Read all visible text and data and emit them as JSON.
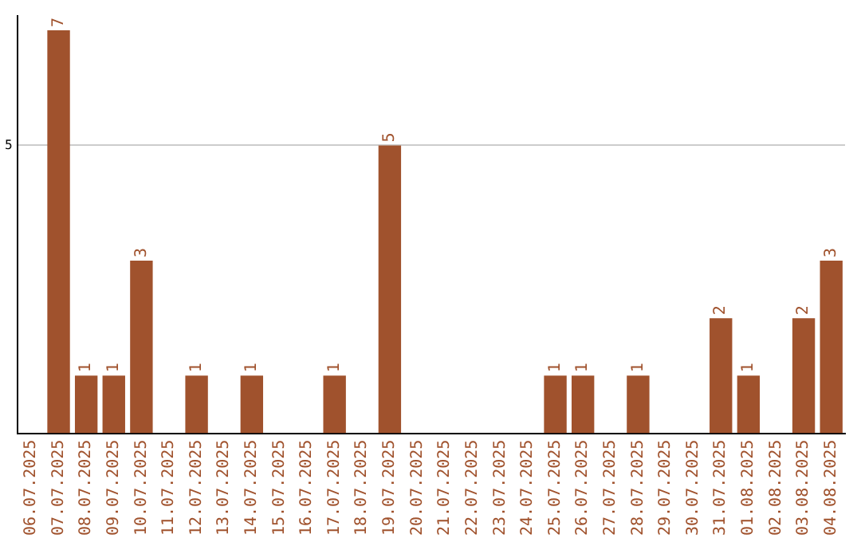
{
  "chart_data": {
    "type": "bar",
    "categories": [
      "06.07.2025",
      "07.07.2025",
      "08.07.2025",
      "09.07.2025",
      "10.07.2025",
      "11.07.2025",
      "12.07.2025",
      "13.07.2025",
      "14.07.2025",
      "15.07.2025",
      "16.07.2025",
      "17.07.2025",
      "18.07.2025",
      "19.07.2025",
      "20.07.2025",
      "21.07.2025",
      "22.07.2025",
      "23.07.2025",
      "24.07.2025",
      "25.07.2025",
      "26.07.2025",
      "27.07.2025",
      "28.07.2025",
      "29.07.2025",
      "30.07.2025",
      "31.07.2025",
      "01.08.2025",
      "02.08.2025",
      "03.08.2025",
      "04.08.2025"
    ],
    "values": [
      0,
      7,
      1,
      1,
      3,
      0,
      1,
      0,
      1,
      0,
      0,
      1,
      0,
      5,
      0,
      0,
      0,
      0,
      0,
      1,
      1,
      0,
      1,
      0,
      0,
      2,
      1,
      0,
      2,
      3
    ],
    "value_labels": [
      null,
      "7",
      "1",
      "1",
      "3",
      null,
      "1",
      null,
      "1",
      null,
      null,
      "1",
      null,
      "5",
      null,
      null,
      null,
      null,
      null,
      "1",
      "1",
      null,
      "1",
      null,
      null,
      "2",
      "1",
      null,
      "2",
      "3"
    ],
    "color": "#a0522d",
    "ylim": [
      0,
      7.25
    ],
    "yticks": [
      5
    ],
    "grid": "y"
  }
}
